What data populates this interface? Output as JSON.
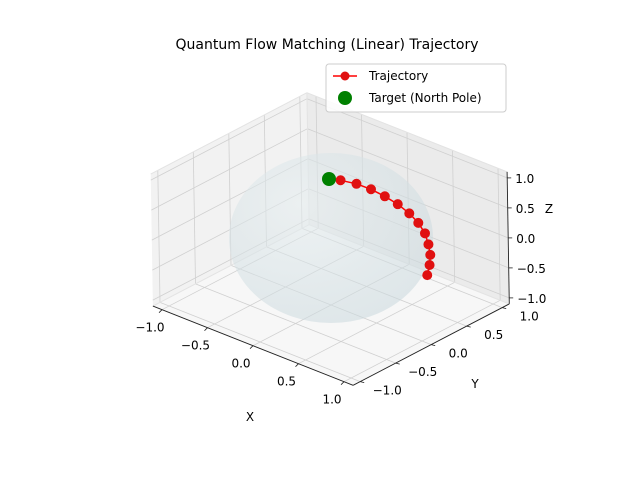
{
  "chart_data": {
    "type": "scatter3d",
    "title": "Quantum Flow Matching (Linear) Trajectory",
    "xlabel": "X",
    "ylabel": "Y",
    "zlabel": "Z",
    "xlim": [
      -1.1,
      1.1
    ],
    "ylim": [
      -1.1,
      1.1
    ],
    "zlim": [
      -1.1,
      1.1
    ],
    "x_ticks": [
      "−1.0",
      "−0.5",
      "0.0",
      "0.5",
      "1.0"
    ],
    "y_ticks": [
      "−1.0",
      "−0.5",
      "0.0",
      "0.5",
      "1.0"
    ],
    "z_ticks": [
      "−1.0",
      "−0.5",
      "0.0",
      "0.5",
      "1.0"
    ],
    "grid": true,
    "legend_position": "upper-right",
    "sphere": {
      "radius": 1,
      "color": "#c8d7dc"
    },
    "series": [
      {
        "name": "Trajectory",
        "kind": "line-with-markers",
        "color": "#ff0000",
        "marker_color": "#e01010",
        "points": [
          [
            0.99,
            0.1,
            -0.07
          ],
          [
            0.97,
            0.16,
            0.05
          ],
          [
            0.94,
            0.21,
            0.17
          ],
          [
            0.89,
            0.25,
            0.29
          ],
          [
            0.83,
            0.28,
            0.42
          ],
          [
            0.75,
            0.29,
            0.54
          ],
          [
            0.66,
            0.28,
            0.65
          ],
          [
            0.55,
            0.26,
            0.75
          ],
          [
            0.44,
            0.22,
            0.84
          ],
          [
            0.32,
            0.18,
            0.91
          ],
          [
            0.2,
            0.13,
            0.96
          ],
          [
            0.08,
            0.06,
            0.99
          ]
        ]
      },
      {
        "name": "Target (North Pole)",
        "kind": "scatter",
        "color": "#008000",
        "points": [
          [
            0,
            0,
            1
          ]
        ]
      }
    ]
  }
}
